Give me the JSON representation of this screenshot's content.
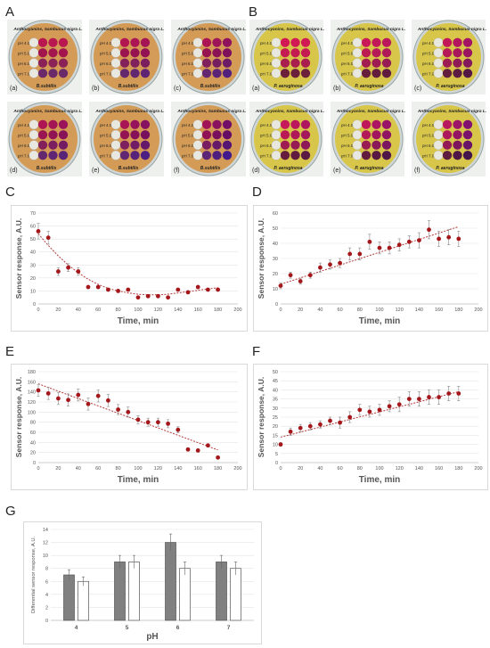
{
  "panels": {
    "A": "A",
    "B": "B",
    "C": "C",
    "D": "D",
    "E": "E",
    "F": "F",
    "G": "G"
  },
  "photos": {
    "A": {
      "header": "Anthocyanins, Sambucus nigra L.",
      "organism": "B.subtilis",
      "ph_labels": [
        "pH 4.0",
        "pH 5.0",
        "pH 6.0",
        "pH 7.0"
      ],
      "sub_labels": [
        "(a)",
        "(b)",
        "(c)",
        "(d)",
        "(e)",
        "(f)"
      ],
      "background": "#d49b57",
      "well_colors": [
        "#b8174f",
        "#a2154d",
        "#8a2257",
        "#6a2a6a"
      ]
    },
    "B": {
      "header": "Anthocyanins, Sambucus nigra L.",
      "organism": "P. aeruginosa",
      "ph_labels": [
        "pH 4.0",
        "pH 5.0",
        "pH 6.0",
        "pH 7.0"
      ],
      "sub_labels": [
        "(a)",
        "(b)",
        "(c)",
        "(d)",
        "(e)",
        "(f)"
      ],
      "background": "#d8c64a",
      "well_colors": [
        "#d11a55",
        "#c41b52",
        "#a81e4e",
        "#6b1f3a"
      ]
    }
  },
  "chart_data": [
    {
      "type": "scatter",
      "panel": "C",
      "trend": "polynomial",
      "xlabel": "Time, min",
      "ylabel": "Sensor response, A.U.",
      "xlim": [
        0,
        200
      ],
      "ylim": [
        0,
        70
      ],
      "xticks": [
        0,
        20,
        40,
        60,
        80,
        100,
        120,
        140,
        160,
        180,
        200
      ],
      "yticks": [
        0,
        10,
        20,
        30,
        40,
        50,
        60,
        70
      ],
      "x": [
        0,
        10,
        20,
        30,
        40,
        50,
        60,
        70,
        80,
        90,
        100,
        110,
        120,
        130,
        140,
        150,
        160,
        170,
        180
      ],
      "y": [
        56,
        51,
        25,
        28,
        25,
        13,
        13,
        11,
        10,
        11,
        5,
        6,
        6,
        5,
        11,
        9,
        13,
        11,
        11
      ],
      "err": [
        6,
        5,
        3,
        3,
        3,
        1,
        1,
        1,
        1,
        1,
        1,
        1,
        1,
        1,
        1,
        1,
        1,
        1,
        1
      ],
      "trend_y": [
        54,
        45,
        37,
        30,
        24,
        19,
        15,
        12,
        10,
        8.5,
        7.5,
        7,
        7,
        7.5,
        8.5,
        9.5,
        10.5,
        11.5,
        12.5
      ]
    },
    {
      "type": "scatter",
      "panel": "D",
      "trend": [
        13,
        51
      ],
      "xlabel": "Time, min",
      "ylabel": "Sensor response, A.U.",
      "xlim": [
        0,
        200
      ],
      "ylim": [
        0,
        60
      ],
      "xticks": [
        0,
        20,
        40,
        60,
        80,
        100,
        120,
        140,
        160,
        180,
        200
      ],
      "yticks": [
        0,
        10,
        20,
        30,
        40,
        50,
        60
      ],
      "x": [
        0,
        10,
        20,
        30,
        40,
        50,
        60,
        70,
        80,
        90,
        100,
        110,
        120,
        130,
        140,
        150,
        160,
        170,
        180
      ],
      "y": [
        12,
        19,
        15,
        19,
        24,
        26,
        27,
        33,
        33,
        41,
        37,
        37,
        39,
        41,
        42,
        49,
        43,
        44,
        43
      ],
      "err": [
        2,
        2,
        2,
        2,
        3,
        3,
        3,
        4,
        4,
        5,
        4,
        4,
        4,
        4,
        5,
        6,
        5,
        5,
        5
      ]
    },
    {
      "type": "scatter",
      "panel": "E",
      "trend": [
        156,
        25
      ],
      "xlabel": "Time, min",
      "ylabel": "Sensor response, A.U.",
      "xlim": [
        0,
        200
      ],
      "ylim": [
        0,
        180
      ],
      "xticks": [
        0,
        20,
        40,
        60,
        80,
        100,
        120,
        140,
        160,
        180,
        200
      ],
      "yticks": [
        0,
        20,
        40,
        60,
        80,
        100,
        120,
        140,
        160,
        180
      ],
      "x": [
        0,
        10,
        20,
        30,
        40,
        50,
        60,
        70,
        80,
        90,
        100,
        110,
        120,
        130,
        140,
        150,
        160,
        170,
        180
      ],
      "y": [
        143,
        137,
        127,
        124,
        134,
        116,
        132,
        123,
        105,
        100,
        85,
        80,
        80,
        77,
        65,
        26,
        24,
        34,
        10
      ],
      "err": [
        12,
        12,
        12,
        12,
        12,
        12,
        12,
        12,
        10,
        10,
        8,
        8,
        8,
        8,
        6,
        3,
        3,
        3,
        2
      ]
    },
    {
      "type": "scatter",
      "panel": "F",
      "trend": [
        14,
        39
      ],
      "xlabel": "Time, min",
      "ylabel": "Sensor response, A.U.",
      "xlim": [
        0,
        200
      ],
      "ylim": [
        0,
        50
      ],
      "xticks": [
        0,
        20,
        40,
        60,
        80,
        100,
        120,
        140,
        160,
        180,
        200
      ],
      "yticks": [
        0,
        5,
        10,
        15,
        20,
        25,
        30,
        35,
        40,
        45,
        50
      ],
      "x": [
        0,
        10,
        20,
        30,
        40,
        50,
        60,
        70,
        80,
        90,
        100,
        110,
        120,
        130,
        140,
        150,
        160,
        170,
        180
      ],
      "y": [
        10,
        17,
        19,
        20,
        21,
        23,
        22,
        25,
        29,
        28,
        29,
        31,
        32,
        35,
        35,
        36,
        36,
        38,
        38
      ],
      "err": [
        1,
        2,
        2,
        2,
        2,
        2,
        3,
        3,
        3,
        3,
        3,
        3,
        4,
        4,
        4,
        4,
        4,
        4,
        4
      ]
    },
    {
      "type": "bar",
      "panel": "G",
      "xlabel": "pH",
      "ylabel": "Differential sensor response, A.U.",
      "categories": [
        "4",
        "5",
        "6",
        "7"
      ],
      "ylim": [
        0,
        14
      ],
      "yticks": [
        0,
        2,
        4,
        6,
        8,
        10,
        12,
        14
      ],
      "series": [
        {
          "values": [
            7,
            9,
            12,
            9
          ],
          "err": [
            0.8,
            1,
            1.3,
            1
          ],
          "color": "#808080"
        },
        {
          "values": [
            6,
            9,
            8,
            8
          ],
          "err": [
            0.7,
            1,
            1,
            1
          ],
          "color": "#ffffff"
        }
      ]
    }
  ],
  "colors": {
    "marker": "#a4181c",
    "trend": "#b33a3a",
    "grid": "#e3e3e3",
    "axis_text": "#555555"
  }
}
